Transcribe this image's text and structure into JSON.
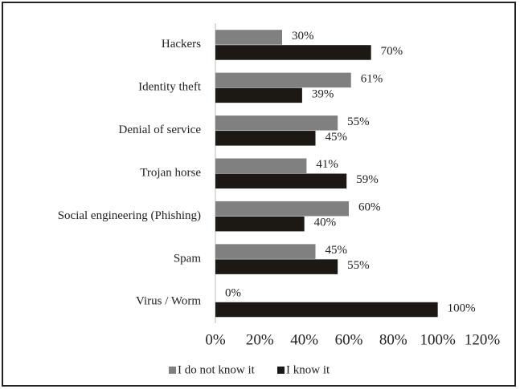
{
  "chart_data": {
    "type": "bar",
    "orientation": "horizontal",
    "categories": [
      "Hackers",
      "Identity theft",
      "Denial of service",
      "Trojan horse",
      "Social engineering (Phishing)",
      "Spam",
      "Virus / Worm"
    ],
    "series": [
      {
        "name": "I do not know it",
        "color": "#808080",
        "values": [
          30,
          61,
          55,
          41,
          60,
          45,
          0
        ],
        "value_labels": [
          "30%",
          "61%",
          "55%",
          "41%",
          "60%",
          "45%",
          "0%"
        ]
      },
      {
        "name": "I know it",
        "color": "#1c1814",
        "values": [
          70,
          39,
          45,
          59,
          40,
          55,
          100
        ],
        "value_labels": [
          "70%",
          "39%",
          "45%",
          "59%",
          "40%",
          "55%",
          "100%"
        ]
      }
    ],
    "xlim": [
      0,
      120
    ],
    "xticks": [
      {
        "value": 0,
        "label": "0%"
      },
      {
        "value": 20,
        "label": "20%"
      },
      {
        "value": 40,
        "label": "40%"
      },
      {
        "value": 60,
        "label": "60%"
      },
      {
        "value": 80,
        "label": "80%"
      },
      {
        "value": 100,
        "label": "100%"
      },
      {
        "value": 120,
        "label": "120%"
      }
    ],
    "grid": false,
    "legend": "bottom"
  }
}
